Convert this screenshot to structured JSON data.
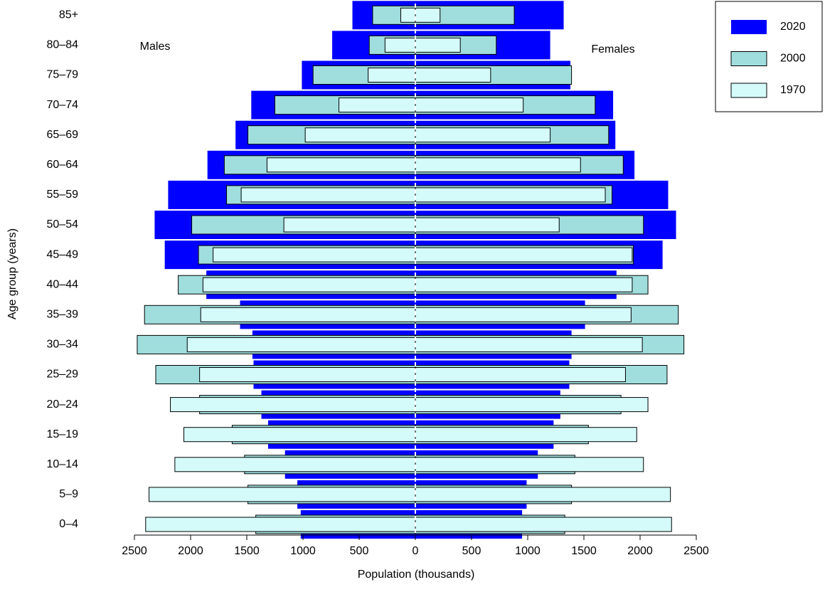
{
  "chart_data": {
    "type": "pyramid",
    "xlabel": "Population (thousands)",
    "ylabel": "Age group (years)",
    "annotations": [
      "Males",
      "Females"
    ],
    "categories": [
      "0–4",
      "5–9",
      "10–14",
      "15–19",
      "20–24",
      "25–29",
      "30–34",
      "35–39",
      "40–44",
      "45–49",
      "50–54",
      "55–59",
      "60–64",
      "65–69",
      "70–74",
      "75–79",
      "80–84",
      "85+"
    ],
    "xlim": [
      -2500,
      2500
    ],
    "xticks": [
      {
        "value": -2500,
        "label": "2500"
      },
      {
        "value": -2000,
        "label": "2000"
      },
      {
        "value": -1500,
        "label": "1500"
      },
      {
        "value": -1000,
        "label": "1000"
      },
      {
        "value": -500,
        "label": "500"
      },
      0,
      500,
      1000,
      1500,
      2000,
      2500
    ],
    "series": [
      {
        "name": "2020",
        "color": "#0000ff",
        "males": [
          -1020,
          -1050,
          -1160,
          -1310,
          -1370,
          -1440,
          -1450,
          -1560,
          -1860,
          -2230,
          -2320,
          -2200,
          -1850,
          -1600,
          -1460,
          -1010,
          -740,
          -560
        ],
        "females": [
          950,
          990,
          1090,
          1230,
          1290,
          1370,
          1390,
          1510,
          1790,
          2200,
          2320,
          2250,
          1950,
          1780,
          1760,
          1380,
          1200,
          1320
        ]
      },
      {
        "name": "2000",
        "color": "#a0dede",
        "males": [
          -1420,
          -1490,
          -1520,
          -1630,
          -1920,
          -2310,
          -2475,
          -2410,
          -2110,
          -1930,
          -1990,
          -1680,
          -1700,
          -1490,
          -1250,
          -910,
          -410,
          -380
        ],
        "females": [
          1330,
          1390,
          1420,
          1540,
          1830,
          2240,
          2390,
          2340,
          2070,
          1940,
          2030,
          1750,
          1850,
          1720,
          1600,
          1390,
          720,
          880
        ]
      },
      {
        "name": "1970",
        "color": "#d4fafa",
        "males": [
          -2400,
          -2370,
          -2140,
          -2060,
          -2180,
          -1920,
          -2030,
          -1910,
          -1890,
          -1800,
          -1170,
          -1550,
          -1320,
          -980,
          -680,
          -420,
          -270,
          -130
        ],
        "females": [
          2280,
          2270,
          2030,
          1970,
          2070,
          1870,
          2020,
          1920,
          1930,
          1930,
          1280,
          1690,
          1470,
          1200,
          960,
          670,
          400,
          220
        ]
      }
    ]
  }
}
